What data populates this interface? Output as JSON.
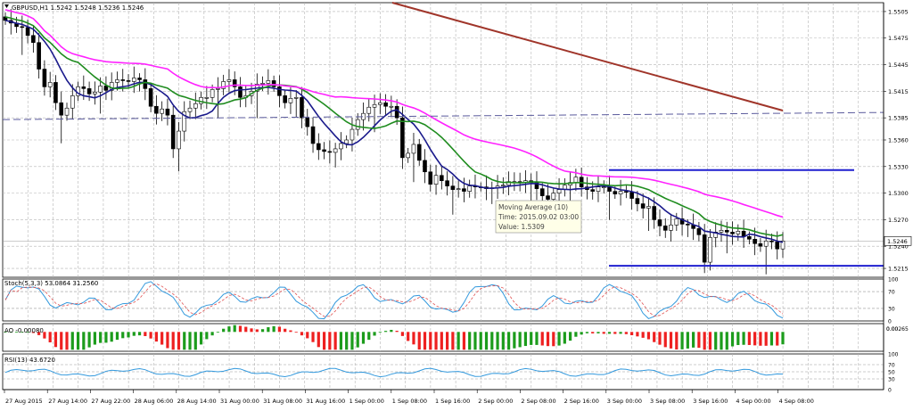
{
  "window": {
    "title": "GBPUSD,H1  1.5242 1.5248 1.5236 1.5246"
  },
  "price_axis": {
    "ticks": [
      "1.5505",
      "1.5475",
      "1.5445",
      "1.5415",
      "1.5385",
      "1.5360",
      "1.5330",
      "1.5300",
      "1.5270",
      "1.5240",
      "1.5215"
    ],
    "current_price": "1.5246"
  },
  "time_axis": {
    "labels": [
      "27 Aug 2015",
      "27 Aug 14:00",
      "27 Aug 22:00",
      "28 Aug 06:00",
      "28 Aug 14:00",
      "31 Aug 00:00",
      "31 Aug 08:00",
      "31 Aug 16:00",
      "1 Sep 00:00",
      "1 Sep 08:00",
      "1 Sep 16:00",
      "2 Sep 00:00",
      "2 Sep 08:00",
      "2 Sep 16:00",
      "3 Sep 00:00",
      "3 Sep 08:00",
      "3 Sep 16:00",
      "4 Sep 00:00",
      "4 Sep 08:00"
    ]
  },
  "tooltip": {
    "line1": "Moving Average (10)",
    "line2": "Time: 2015.09.02 03:00",
    "line3": "Value: 1.5309"
  },
  "stoch": {
    "label": "Stoch(5,3,3) 53.0864 31.2560",
    "ticks": [
      "100",
      "70",
      "30",
      "0"
    ]
  },
  "ao": {
    "label": "AO -0.00080",
    "ticks": [
      "0.00265",
      "0.00"
    ]
  },
  "rsi": {
    "label": "RSI(13) 43.6720",
    "ticks": [
      "100",
      "70",
      "50",
      "30",
      "0"
    ]
  },
  "colors": {
    "grid": "#b4b4b4",
    "candle": "#000000",
    "ma_fast": "#1a1a8c",
    "ma_mid": "#1f8c1f",
    "ma_slow": "#ff22ff",
    "ma_long": "#a0352a",
    "level_line": "#1f1fcf",
    "dashed_line": "#5a5a9c",
    "stoch_main": "#3399dd",
    "stoch_signal": "#e05050",
    "ao_up": "#1c9c1c",
    "ao_down": "#ee2020",
    "rsi_line": "#3399dd"
  },
  "chart_data": [
    {
      "type": "candlestick",
      "title": "GBPUSD,H1",
      "ylim": [
        1.5205,
        1.5515
      ],
      "last_values": {
        "open": 1.5242,
        "high": 1.5248,
        "low": 1.5236,
        "close": 1.5246
      },
      "closes": [
        1.5495,
        1.5492,
        1.5488,
        1.5487,
        1.5478,
        1.547,
        1.544,
        1.542,
        1.5425,
        1.5402,
        1.5388,
        1.5396,
        1.541,
        1.542,
        1.5418,
        1.5412,
        1.5414,
        1.5421,
        1.5416,
        1.5425,
        1.5428,
        1.5427,
        1.5426,
        1.543,
        1.5428,
        1.5418,
        1.5398,
        1.539,
        1.5395,
        1.5388,
        1.535,
        1.537,
        1.5392,
        1.5396,
        1.5401,
        1.5408,
        1.5408,
        1.5417,
        1.5418,
        1.5426,
        1.5428,
        1.542,
        1.5408,
        1.541,
        1.5415,
        1.5423,
        1.5424,
        1.5427,
        1.542,
        1.541,
        1.5402,
        1.5407,
        1.5408,
        1.5385,
        1.5375,
        1.5356,
        1.5349,
        1.5347,
        1.5346,
        1.535,
        1.5356,
        1.536,
        1.5372,
        1.5383,
        1.539,
        1.5397,
        1.54,
        1.5402,
        1.5398,
        1.5398,
        1.5385,
        1.534,
        1.5345,
        1.5355,
        1.5337,
        1.5324,
        1.531,
        1.532,
        1.5314,
        1.5308,
        1.5304,
        1.5305,
        1.5302,
        1.5308,
        1.5307,
        1.5307,
        1.5305,
        1.5306,
        1.5308,
        1.5309,
        1.5313,
        1.5313,
        1.5312,
        1.5314,
        1.5312,
        1.5305,
        1.5297,
        1.5293,
        1.53,
        1.5304,
        1.5309,
        1.5312,
        1.5318,
        1.5307,
        1.5304,
        1.5302,
        1.5307,
        1.5307,
        1.5302,
        1.5299,
        1.5302,
        1.5301,
        1.5294,
        1.5288,
        1.5283,
        1.5285,
        1.527,
        1.5263,
        1.5258,
        1.5264,
        1.5271,
        1.5265,
        1.5264,
        1.526,
        1.5253,
        1.5222,
        1.525,
        1.5256,
        1.5258,
        1.5256,
        1.5254,
        1.5257,
        1.5251,
        1.5248,
        1.5243,
        1.524,
        1.5246,
        1.5245,
        1.5237,
        1.5246
      ],
      "moving_averages": [
        {
          "period": 10,
          "tooltip_time": "2015.09.02 03:00",
          "tooltip_value": 1.5309
        }
      ],
      "horizontal_levels": [
        1.5326,
        1.5218
      ],
      "dashed_level": 1.5383,
      "x_tick_labels": [
        "27 Aug 2015",
        "27 Aug 14:00",
        "27 Aug 22:00",
        "28 Aug 06:00",
        "28 Aug 14:00",
        "31 Aug 00:00",
        "31 Aug 08:00",
        "31 Aug 16:00",
        "1 Sep 00:00",
        "1 Sep 08:00",
        "1 Sep 16:00",
        "2 Sep 00:00",
        "2 Sep 08:00",
        "2 Sep 16:00",
        "3 Sep 00:00",
        "3 Sep 08:00",
        "3 Sep 16:00",
        "4 Sep 00:00",
        "4 Sep 08:00"
      ],
      "grid": true
    },
    {
      "type": "line",
      "title": "Stoch(5,3,3) 53.0864 31.2560",
      "ylim": [
        0,
        100
      ],
      "last_values": [
        53.0864,
        31.256
      ],
      "levels": [
        70,
        30
      ],
      "grid": true
    },
    {
      "type": "bar",
      "title": "AO -0.00080",
      "last_value": -0.0008,
      "grid": true
    },
    {
      "type": "line",
      "title": "RSI(13) 43.6720",
      "ylim": [
        0,
        100
      ],
      "last_value": 43.672,
      "levels": [
        70,
        50,
        30
      ],
      "grid": true
    }
  ]
}
